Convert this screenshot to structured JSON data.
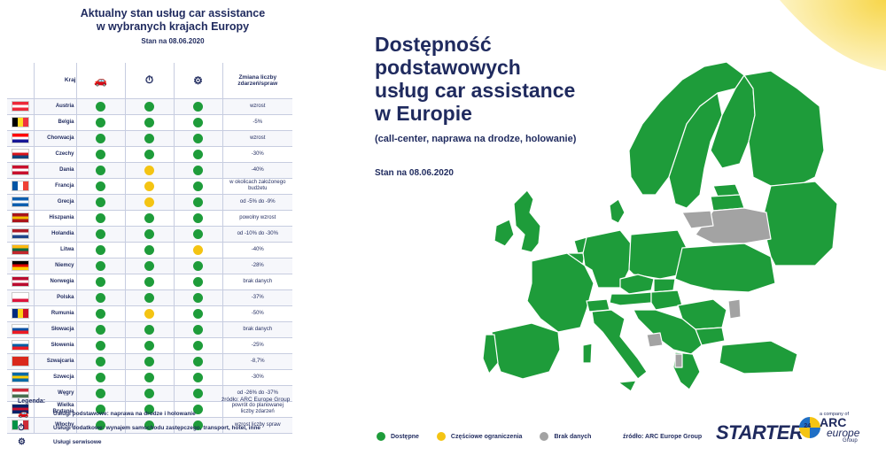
{
  "left": {
    "title_line1": "Aktualny stan usług car assistance",
    "title_line2": "w wybranych krajach Europy",
    "date": "Stan na 08.06.2020",
    "headers": {
      "country": "Kraj",
      "change": "Zmiana liczby zdarzeń/spraw"
    },
    "source": "źródło: ARC Europe Group",
    "legend_title": "Legenda:",
    "legend": [
      {
        "icon": "car-breakdown-icon",
        "label": "Usługi podstawowe: naprawa na drodze i holowanie"
      },
      {
        "icon": "clock-car-icon",
        "label": "Usługi dodatkowe: wynajem samochodu zastępczego, transport, hotel, inne"
      },
      {
        "icon": "car-lift-icon",
        "label": "Usługi serwisowe"
      }
    ]
  },
  "rows": [
    {
      "name": "Austria",
      "flag": [
        "#ED2939",
        "#FFFFFF",
        "#ED2939"
      ],
      "dir": "h",
      "s": [
        "g",
        "g",
        "g"
      ],
      "change": "wzrost"
    },
    {
      "name": "Belgia",
      "flag": [
        "#000000",
        "#FDDA24",
        "#EF3340"
      ],
      "dir": "v",
      "s": [
        "g",
        "g",
        "g"
      ],
      "change": "-5%"
    },
    {
      "name": "Chorwacja",
      "flag": [
        "#FF0000",
        "#FFFFFF",
        "#171796"
      ],
      "dir": "h",
      "s": [
        "g",
        "g",
        "g"
      ],
      "change": "wzrost"
    },
    {
      "name": "Czechy",
      "flag": [
        "#FFFFFF",
        "#D7141A",
        "#11457E"
      ],
      "dir": "h",
      "s": [
        "g",
        "g",
        "g"
      ],
      "change": "-30%"
    },
    {
      "name": "Dania",
      "flag": [
        "#C8102E",
        "#FFFFFF",
        "#C8102E"
      ],
      "dir": "h",
      "s": [
        "g",
        "y",
        "g"
      ],
      "change": "-40%"
    },
    {
      "name": "Francja",
      "flag": [
        "#0055A4",
        "#FFFFFF",
        "#EF4135"
      ],
      "dir": "v",
      "s": [
        "g",
        "y",
        "g"
      ],
      "change": "w okolicach założonego budżetu"
    },
    {
      "name": "Grecja",
      "flag": [
        "#0D5EAF",
        "#FFFFFF",
        "#0D5EAF"
      ],
      "dir": "h",
      "s": [
        "g",
        "y",
        "g"
      ],
      "change": "od -5% do -9%"
    },
    {
      "name": "Hiszpania",
      "flag": [
        "#AA151B",
        "#F1BF00",
        "#AA151B"
      ],
      "dir": "h",
      "s": [
        "g",
        "g",
        "g"
      ],
      "change": "powolny wzrost"
    },
    {
      "name": "Holandia",
      "flag": [
        "#AE1C28",
        "#FFFFFF",
        "#21468B"
      ],
      "dir": "h",
      "s": [
        "g",
        "g",
        "g"
      ],
      "change": "od -10% do -30%"
    },
    {
      "name": "Litwa",
      "flag": [
        "#FDB913",
        "#006A44",
        "#C1272D"
      ],
      "dir": "h",
      "s": [
        "g",
        "g",
        "y"
      ],
      "change": "-40%"
    },
    {
      "name": "Niemcy",
      "flag": [
        "#000000",
        "#DD0000",
        "#FFCE00"
      ],
      "dir": "h",
      "s": [
        "g",
        "g",
        "g"
      ],
      "change": "-28%"
    },
    {
      "name": "Norwegia",
      "flag": [
        "#BA0C2F",
        "#FFFFFF",
        "#BA0C2F"
      ],
      "dir": "h",
      "s": [
        "g",
        "g",
        "g"
      ],
      "change": "brak danych"
    },
    {
      "name": "Polska",
      "flag": [
        "#FFFFFF",
        "#FFFFFF",
        "#DC143C"
      ],
      "dir": "h",
      "s": [
        "g",
        "g",
        "g"
      ],
      "change": "-37%"
    },
    {
      "name": "Rumunia",
      "flag": [
        "#002B7F",
        "#FCD116",
        "#CE1126"
      ],
      "dir": "v",
      "s": [
        "g",
        "y",
        "g"
      ],
      "change": "-50%"
    },
    {
      "name": "Słowacja",
      "flag": [
        "#FFFFFF",
        "#0B4EA2",
        "#EE1C25"
      ],
      "dir": "h",
      "s": [
        "g",
        "g",
        "g"
      ],
      "change": "brak danych"
    },
    {
      "name": "Słowenia",
      "flag": [
        "#FFFFFF",
        "#005DA4",
        "#ED1C24"
      ],
      "dir": "h",
      "s": [
        "g",
        "g",
        "g"
      ],
      "change": "-25%"
    },
    {
      "name": "Szwajcaria",
      "flag": [
        "#DA291C",
        "#DA291C",
        "#DA291C"
      ],
      "dir": "h",
      "s": [
        "g",
        "g",
        "g"
      ],
      "change": "-8,7%"
    },
    {
      "name": "Szwecja",
      "flag": [
        "#006AA7",
        "#FECC00",
        "#006AA7"
      ],
      "dir": "h",
      "s": [
        "g",
        "g",
        "g"
      ],
      "change": "-30%"
    },
    {
      "name": "Węgry",
      "flag": [
        "#CE2939",
        "#FFFFFF",
        "#477050"
      ],
      "dir": "h",
      "s": [
        "g",
        "g",
        "g"
      ],
      "change": "od -26% do -37%"
    },
    {
      "name": "Wielka Brytania",
      "flag": [
        "#012169",
        "#C8102E",
        "#012169"
      ],
      "dir": "h",
      "s": [
        "g",
        "g",
        "g"
      ],
      "change": "powrót do planowanej liczby zdarzeń"
    },
    {
      "name": "Włochy",
      "flag": [
        "#009246",
        "#FFFFFF",
        "#CE2B37"
      ],
      "dir": "v",
      "s": [
        "g",
        "g",
        "g"
      ],
      "change": "wzrost liczby spraw"
    }
  ],
  "right": {
    "title_line1": "Dostępność",
    "title_line2": "podstawowych",
    "title_line3": "usług car assistance",
    "title_line4": "w Europie",
    "subtitle": "(call-center, naprawa na drodze, holowanie)",
    "date": "Stan na 08.06.2020",
    "legend": {
      "available": "Dostępne",
      "partial": "Częściowe ograniczenia",
      "nodata": "Brak danych"
    },
    "source": "źródło: ARC Europe Group"
  },
  "colors": {
    "available": "#1e9c3a",
    "partial": "#f4c413",
    "nodata": "#a3a3a3",
    "navy": "#1f2a5e"
  },
  "logos": {
    "starter_text": "STARTER",
    "starter_num": "24",
    "arc_small": "a company of",
    "arc_big": "ARC",
    "arc_europe": "europe",
    "arc_group": "Group"
  }
}
